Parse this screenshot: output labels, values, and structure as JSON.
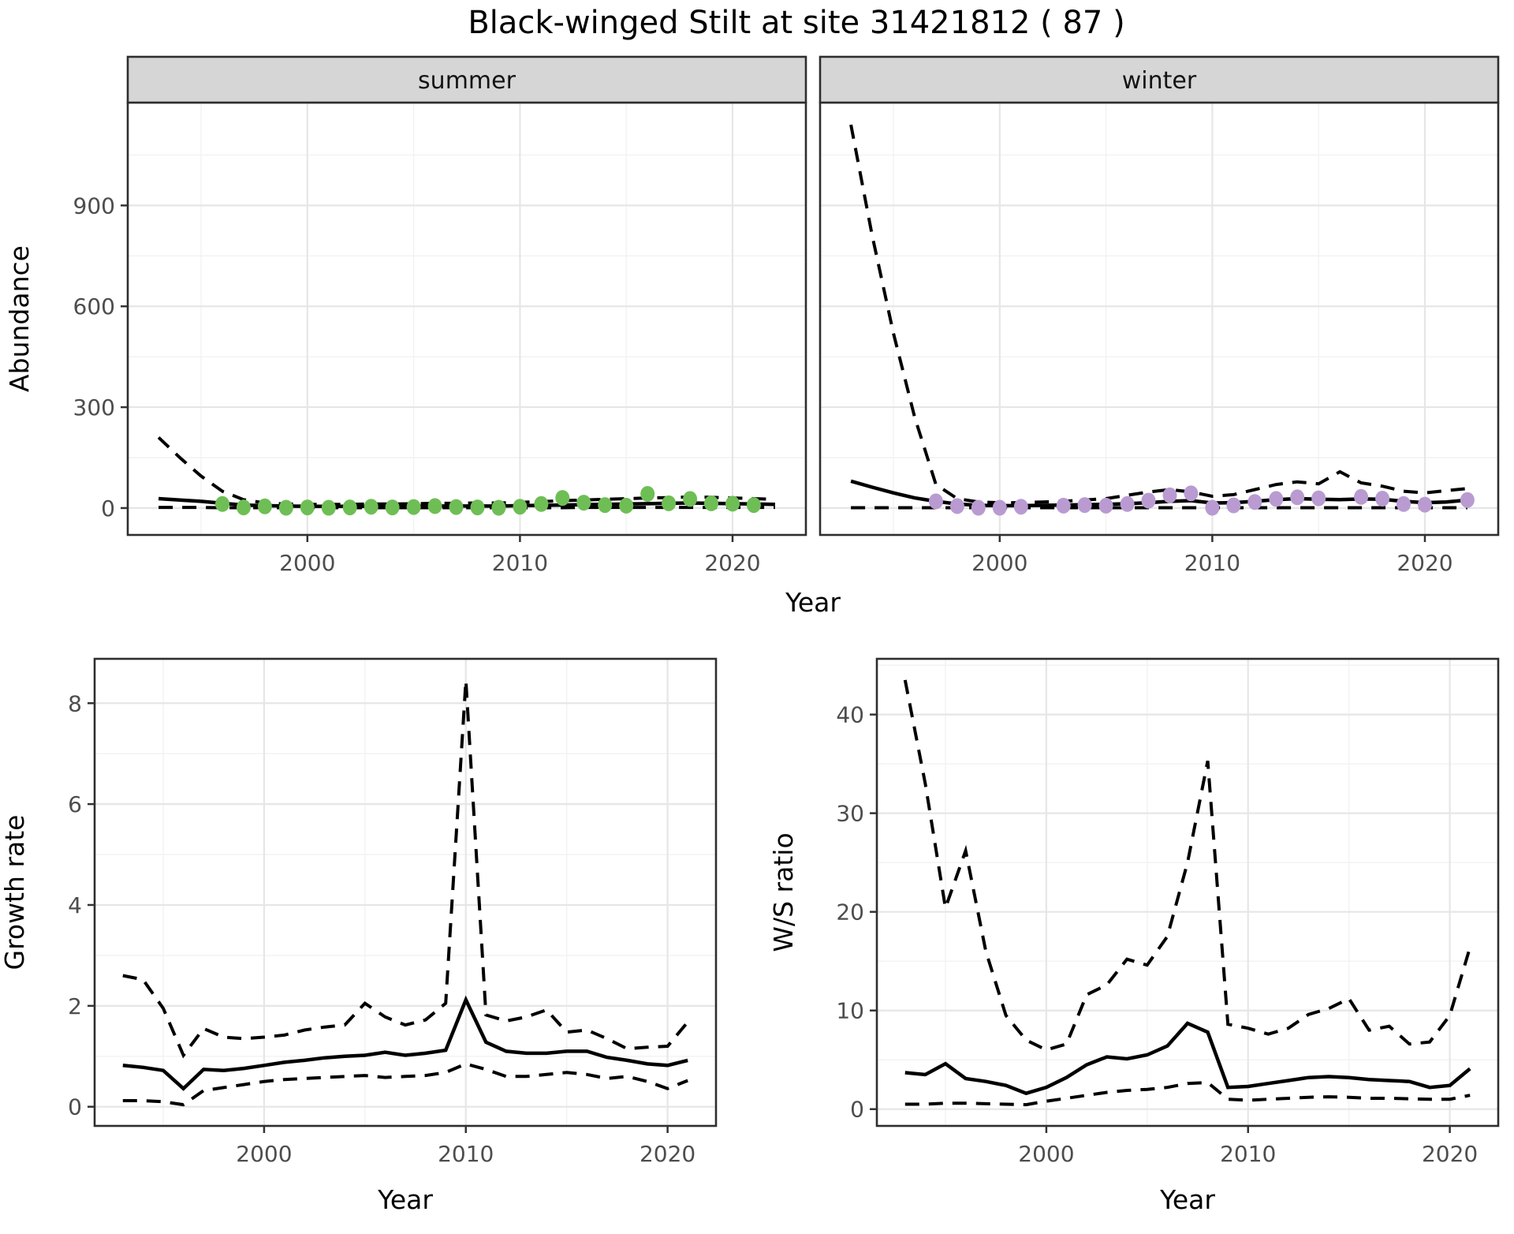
{
  "title": "Black-winged Stilt at site 31421812 ( 87 )",
  "colors": {
    "summer_points": "#6ebe55",
    "winter_points": "#b99bd2",
    "trend_line": "#000000",
    "ci_line": "#000000",
    "grid_major": "#e6e6e6",
    "grid_minor": "#f2f2f2",
    "panel_border": "#2e2e2e",
    "strip_bg": "#d6d6d6",
    "strip_text": "#141414",
    "tick_label": "#4d4d4d",
    "axis_title": "#000000",
    "panel_bg": "#ffffff"
  },
  "chart_data": [
    {
      "id": "abundance-summer",
      "type": "line",
      "facet": "summer",
      "xlabel": "Year",
      "ylabel": "Abundance",
      "xlim": [
        1991.55,
        2023.45
      ],
      "ylim": [
        -80,
        1206
      ],
      "x_ticks": [
        2000,
        2010,
        2020
      ],
      "x_minor": [
        1995,
        2005,
        2015
      ],
      "y_ticks": [
        0,
        300,
        600,
        900
      ],
      "y_minor": [
        150,
        450,
        750,
        1050
      ],
      "grid": true,
      "legend": "none",
      "series": [
        {
          "name": "trend",
          "style": "solid",
          "x": [
            1993,
            1994,
            1995,
            1996,
            1997,
            1998,
            1999,
            2000,
            2001,
            2002,
            2003,
            2004,
            2005,
            2006,
            2007,
            2008,
            2009,
            2010,
            2011,
            2012,
            2013,
            2014,
            2015,
            2016,
            2017,
            2018,
            2019,
            2020,
            2021,
            2022
          ],
          "y": [
            28,
            24,
            20,
            14,
            9,
            7,
            6,
            5,
            5,
            5,
            5,
            5,
            5,
            6,
            6,
            6,
            6,
            7,
            8,
            9,
            10,
            11,
            12,
            13,
            14,
            15,
            14,
            13,
            12,
            11
          ]
        },
        {
          "name": "ci_upper",
          "style": "dashed",
          "x": [
            1993,
            1994,
            1995,
            1996,
            1997,
            1998,
            1999,
            2000,
            2001,
            2002,
            2003,
            2004,
            2005,
            2006,
            2007,
            2008,
            2009,
            2010,
            2011,
            2012,
            2013,
            2014,
            2015,
            2016,
            2017,
            2018,
            2019,
            2020,
            2021,
            2022
          ],
          "y": [
            210,
            150,
            95,
            50,
            25,
            15,
            12,
            11,
            11,
            11,
            12,
            12,
            13,
            14,
            14,
            15,
            15,
            17,
            19,
            22,
            24,
            26,
            28,
            30,
            31,
            33,
            32,
            30,
            28,
            26
          ]
        },
        {
          "name": "ci_lower",
          "style": "dashed",
          "x": [
            1993,
            1994,
            1995,
            1996,
            1997,
            1998,
            1999,
            2000,
            2001,
            2002,
            2003,
            2004,
            2005,
            2006,
            2007,
            2008,
            2009,
            2010,
            2011,
            2012,
            2013,
            2014,
            2015,
            2016,
            2017,
            2018,
            2019,
            2020,
            2021,
            2022
          ],
          "y": [
            2,
            2,
            2,
            1,
            1,
            1,
            1,
            1,
            1,
            1,
            1,
            1,
            1,
            1,
            1,
            1,
            1,
            1,
            1,
            1,
            2,
            2,
            2,
            2,
            2,
            2,
            2,
            2,
            2,
            2
          ]
        },
        {
          "name": "observations",
          "style": "points",
          "color": "#6ebe55",
          "x": [
            1996,
            1997,
            1998,
            1999,
            2000,
            2001,
            2002,
            2003,
            2004,
            2005,
            2006,
            2007,
            2008,
            2009,
            2010,
            2011,
            2012,
            2013,
            2014,
            2015,
            2016,
            2017,
            2018,
            2019,
            2020,
            2021
          ],
          "y": [
            12,
            2,
            5,
            1,
            2,
            1,
            2,
            4,
            2,
            3,
            6,
            3,
            2,
            1,
            4,
            12,
            30,
            16,
            9,
            7,
            42,
            14,
            27,
            14,
            13,
            9
          ]
        }
      ]
    },
    {
      "id": "abundance-winter",
      "type": "line",
      "facet": "winter",
      "xlabel": "Year",
      "ylabel": "",
      "xlim": [
        1991.55,
        2023.45
      ],
      "ylim": [
        -80,
        1206
      ],
      "x_ticks": [
        2000,
        2010,
        2020
      ],
      "x_minor": [
        1995,
        2005,
        2015
      ],
      "y_ticks": [
        0,
        300,
        600,
        900
      ],
      "y_minor": [
        150,
        450,
        750,
        1050
      ],
      "grid": true,
      "legend": "none",
      "series": [
        {
          "name": "trend",
          "style": "solid",
          "x": [
            1993,
            1994,
            1995,
            1996,
            1997,
            1998,
            1999,
            2000,
            2001,
            2002,
            2003,
            2004,
            2005,
            2006,
            2007,
            2008,
            2009,
            2010,
            2011,
            2012,
            2013,
            2014,
            2015,
            2016,
            2017,
            2018,
            2019,
            2020,
            2021,
            2022
          ],
          "y": [
            80,
            62,
            45,
            30,
            20,
            12,
            8,
            7,
            7,
            8,
            9,
            10,
            11,
            13,
            16,
            20,
            22,
            15,
            16,
            20,
            25,
            28,
            26,
            25,
            27,
            26,
            20,
            16,
            18,
            24
          ]
        },
        {
          "name": "ci_upper",
          "style": "dashed",
          "x": [
            1993,
            1994,
            1995,
            1996,
            1997,
            1998,
            1999,
            2000,
            2001,
            2002,
            2003,
            2004,
            2005,
            2006,
            2007,
            2008,
            2009,
            2010,
            2011,
            2012,
            2013,
            2014,
            2015,
            2016,
            2017,
            2018,
            2019,
            2020,
            2021,
            2022
          ],
          "y": [
            1140,
            810,
            520,
            270,
            70,
            28,
            18,
            16,
            16,
            18,
            20,
            24,
            28,
            38,
            48,
            55,
            48,
            35,
            40,
            55,
            70,
            78,
            72,
            108,
            75,
            65,
            50,
            45,
            52,
            58
          ]
        },
        {
          "name": "ci_lower",
          "style": "dashed",
          "x": [
            1993,
            1994,
            1995,
            1996,
            1997,
            1998,
            1999,
            2000,
            2001,
            2002,
            2003,
            2004,
            2005,
            2006,
            2007,
            2008,
            2009,
            2010,
            2011,
            2012,
            2013,
            2014,
            2015,
            2016,
            2017,
            2018,
            2019,
            2020,
            2021,
            2022
          ],
          "y": [
            1,
            1,
            1,
            1,
            1,
            1,
            1,
            1,
            1,
            1,
            1,
            1,
            1,
            1,
            1,
            1,
            1,
            1,
            1,
            1,
            1,
            1,
            1,
            1,
            1,
            1,
            1,
            1,
            1,
            1
          ]
        },
        {
          "name": "observations",
          "style": "points",
          "color": "#b99bd2",
          "x": [
            1997,
            1998,
            1999,
            2000,
            2001,
            2003,
            2004,
            2005,
            2006,
            2007,
            2008,
            2009,
            2010,
            2011,
            2012,
            2013,
            2014,
            2015,
            2017,
            2018,
            2019,
            2020,
            2022
          ],
          "y": [
            20,
            6,
            1,
            1,
            4,
            7,
            9,
            7,
            12,
            22,
            38,
            44,
            1,
            8,
            18,
            27,
            32,
            29,
            33,
            28,
            12,
            10,
            24
          ]
        }
      ]
    },
    {
      "id": "growth-rate",
      "type": "line",
      "facet": null,
      "xlabel": "Year",
      "ylabel": "Growth rate",
      "xlim": [
        1991.6,
        2022.4
      ],
      "ylim": [
        -0.38,
        8.88
      ],
      "x_ticks": [
        2000,
        2010,
        2020
      ],
      "x_minor": [
        1995,
        2005,
        2015
      ],
      "y_ticks": [
        0,
        2,
        4,
        6,
        8
      ],
      "y_minor": [
        1,
        3,
        5,
        7
      ],
      "grid": true,
      "legend": "none",
      "series": [
        {
          "name": "trend",
          "style": "solid",
          "x": [
            1993,
            1994,
            1995,
            1996,
            1997,
            1998,
            1999,
            2000,
            2001,
            2002,
            2003,
            2004,
            2005,
            2006,
            2007,
            2008,
            2009,
            2010,
            2011,
            2012,
            2013,
            2014,
            2015,
            2016,
            2017,
            2018,
            2019,
            2020,
            2021
          ],
          "y": [
            0.82,
            0.78,
            0.72,
            0.36,
            0.74,
            0.72,
            0.76,
            0.82,
            0.88,
            0.92,
            0.97,
            1.0,
            1.02,
            1.08,
            1.02,
            1.06,
            1.12,
            2.12,
            1.28,
            1.1,
            1.06,
            1.06,
            1.1,
            1.1,
            0.98,
            0.92,
            0.85,
            0.82,
            0.92
          ]
        },
        {
          "name": "ci_upper",
          "style": "dashed",
          "x": [
            1993,
            1994,
            1995,
            1996,
            1997,
            1998,
            1999,
            2000,
            2001,
            2002,
            2003,
            2004,
            2005,
            2006,
            2007,
            2008,
            2009,
            2010,
            2011,
            2012,
            2013,
            2014,
            2015,
            2016,
            2017,
            2018,
            2019,
            2020,
            2021
          ],
          "y": [
            2.6,
            2.52,
            1.95,
            1.02,
            1.55,
            1.38,
            1.35,
            1.38,
            1.42,
            1.52,
            1.58,
            1.62,
            2.05,
            1.78,
            1.62,
            1.72,
            2.05,
            8.45,
            1.82,
            1.7,
            1.78,
            1.92,
            1.48,
            1.52,
            1.35,
            1.15,
            1.18,
            1.2,
            1.68
          ]
        },
        {
          "name": "ci_lower",
          "style": "dashed",
          "x": [
            1993,
            1994,
            1995,
            1996,
            1997,
            1998,
            1999,
            2000,
            2001,
            2002,
            2003,
            2004,
            2005,
            2006,
            2007,
            2008,
            2009,
            2010,
            2011,
            2012,
            2013,
            2014,
            2015,
            2016,
            2017,
            2018,
            2019,
            2020,
            2021
          ],
          "y": [
            0.12,
            0.12,
            0.1,
            0.04,
            0.32,
            0.38,
            0.44,
            0.5,
            0.54,
            0.56,
            0.58,
            0.6,
            0.62,
            0.58,
            0.6,
            0.62,
            0.68,
            0.85,
            0.74,
            0.6,
            0.6,
            0.64,
            0.68,
            0.64,
            0.56,
            0.6,
            0.5,
            0.36,
            0.52
          ]
        }
      ]
    },
    {
      "id": "ws-ratio",
      "type": "line",
      "facet": null,
      "xlabel": "Year",
      "ylabel": "W/S ratio",
      "xlim": [
        1991.6,
        2022.4
      ],
      "ylim": [
        -1.7,
        45.65
      ],
      "x_ticks": [
        2000,
        2010,
        2020
      ],
      "x_minor": [
        1995,
        2005,
        2015
      ],
      "y_ticks": [
        0,
        10,
        20,
        30,
        40
      ],
      "y_minor": [
        5,
        15,
        25,
        35,
        45
      ],
      "grid": true,
      "legend": "none",
      "series": [
        {
          "name": "trend",
          "style": "solid",
          "x": [
            1993,
            1994,
            1995,
            1996,
            1997,
            1998,
            1999,
            2000,
            2001,
            2002,
            2003,
            2004,
            2005,
            2006,
            2007,
            2008,
            2009,
            2010,
            2011,
            2012,
            2013,
            2014,
            2015,
            2016,
            2017,
            2018,
            2019,
            2020,
            2021
          ],
          "y": [
            3.7,
            3.5,
            4.6,
            3.1,
            2.8,
            2.4,
            1.6,
            2.2,
            3.2,
            4.5,
            5.3,
            5.1,
            5.5,
            6.4,
            8.7,
            7.8,
            2.2,
            2.3,
            2.6,
            2.9,
            3.2,
            3.3,
            3.2,
            3.0,
            2.9,
            2.8,
            2.2,
            2.4,
            4.1
          ]
        },
        {
          "name": "ci_upper",
          "style": "dashed",
          "x": [
            1993,
            1994,
            1995,
            1996,
            1997,
            1998,
            1999,
            2000,
            2001,
            2002,
            2003,
            2004,
            2005,
            2006,
            2007,
            2008,
            2009,
            2010,
            2011,
            2012,
            2013,
            2014,
            2015,
            2016,
            2017,
            2018,
            2019,
            2020,
            2021
          ],
          "y": [
            43.5,
            33.0,
            20.4,
            26.2,
            16.0,
            9.5,
            7.0,
            6.0,
            6.6,
            11.6,
            12.6,
            15.2,
            14.6,
            17.5,
            25.0,
            35.3,
            8.6,
            8.2,
            7.6,
            8.2,
            9.6,
            10.2,
            11.2,
            8.0,
            8.4,
            6.6,
            6.8,
            9.5,
            16.4
          ]
        },
        {
          "name": "ci_lower",
          "style": "dashed",
          "x": [
            1993,
            1994,
            1995,
            1996,
            1997,
            1998,
            1999,
            2000,
            2001,
            2002,
            2003,
            2004,
            2005,
            2006,
            2007,
            2008,
            2009,
            2010,
            2011,
            2012,
            2013,
            2014,
            2015,
            2016,
            2017,
            2018,
            2019,
            2020,
            2021
          ],
          "y": [
            0.5,
            0.5,
            0.6,
            0.6,
            0.55,
            0.5,
            0.45,
            0.8,
            1.1,
            1.4,
            1.7,
            1.9,
            2.0,
            2.2,
            2.6,
            2.7,
            1.0,
            0.9,
            1.0,
            1.1,
            1.2,
            1.25,
            1.2,
            1.1,
            1.1,
            1.05,
            1.0,
            1.0,
            1.4
          ]
        }
      ]
    }
  ]
}
